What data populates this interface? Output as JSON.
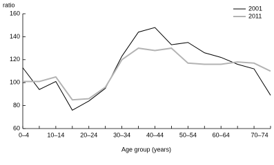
{
  "chart_data": {
    "type": "line",
    "y_label": "ratio",
    "x_label": "Age group (years)",
    "categories": [
      "0–4",
      null,
      "10–14",
      null,
      "20–24",
      null,
      "30–34",
      null,
      "40–44",
      null,
      "50–54",
      null,
      "60–64",
      null,
      "70–74",
      null
    ],
    "series": [
      {
        "name": "2001",
        "color": "#000000",
        "values": [
          113,
          94,
          101,
          76,
          84,
          95,
          123,
          144,
          148,
          133,
          135,
          126,
          122,
          116,
          112,
          89
        ]
      },
      {
        "name": "2011",
        "color": "#b3b3b3",
        "values": [
          101,
          101,
          105,
          85,
          86,
          96,
          120,
          130,
          128,
          130,
          117,
          116,
          116,
          118,
          117,
          110
        ]
      }
    ],
    "ylim": [
      60,
      160
    ],
    "yticks": [
      60,
      80,
      100,
      120,
      140,
      160
    ],
    "legend": "top-right"
  }
}
